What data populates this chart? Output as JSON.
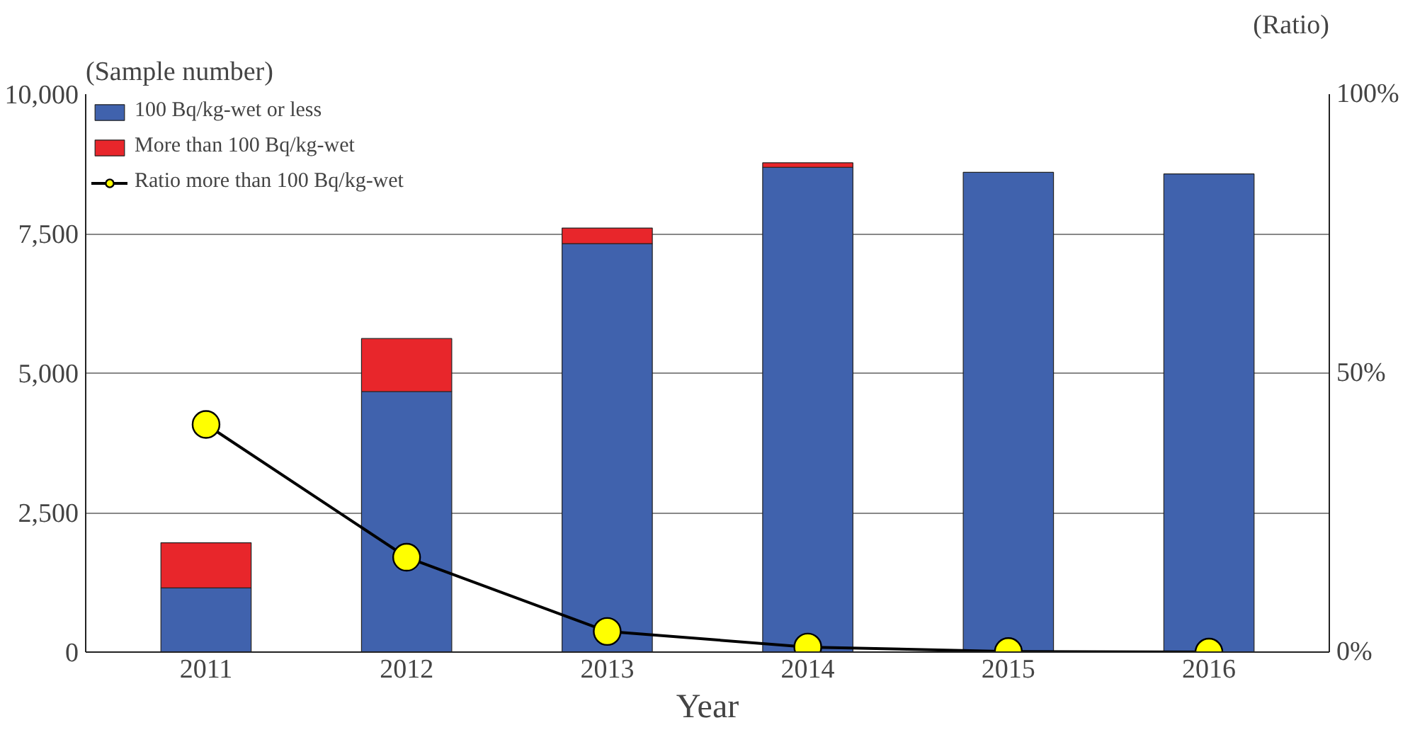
{
  "chart_data": {
    "type": "bar",
    "stacked": true,
    "categories": [
      "2011",
      "2012",
      "2013",
      "2014",
      "2015",
      "2016"
    ],
    "series": [
      {
        "name": "100 Bq/kg-wet or less",
        "color": "#4062ad",
        "values": [
          1150,
          4670,
          7320,
          8690,
          8600,
          8570
        ]
      },
      {
        "name": "More than 100 Bq/kg-wet",
        "color": "#e8262b",
        "values": [
          810,
          950,
          280,
          80,
          null,
          0
        ]
      },
      {
        "name": "Ratio more than 100 Bq/kg-wet",
        "type": "line",
        "axis": "y2",
        "color": "#ffff00",
        "marker": "circle",
        "values": [
          40.8,
          17,
          3.7,
          0.9,
          0.1,
          0
        ]
      }
    ],
    "ylim": [
      0,
      10000
    ],
    "yticks": [
      {
        "value": 0,
        "label": "0"
      },
      {
        "value": 2500,
        "label": "2,500"
      },
      {
        "value": 5000,
        "label": "5,000"
      },
      {
        "value": 7500,
        "label": "7,500"
      },
      {
        "value": 10000,
        "label": "10,000"
      }
    ],
    "y2lim": [
      0,
      100
    ],
    "y2ticks": [
      {
        "value": 0,
        "label": "0%"
      },
      {
        "value": 50,
        "label": "50%"
      },
      {
        "value": 100,
        "label": "100%"
      }
    ],
    "ylabel": "(Sample number)",
    "y2label": "(Ratio)",
    "xlabel": "Year",
    "grid": "y",
    "legend": "top left"
  }
}
